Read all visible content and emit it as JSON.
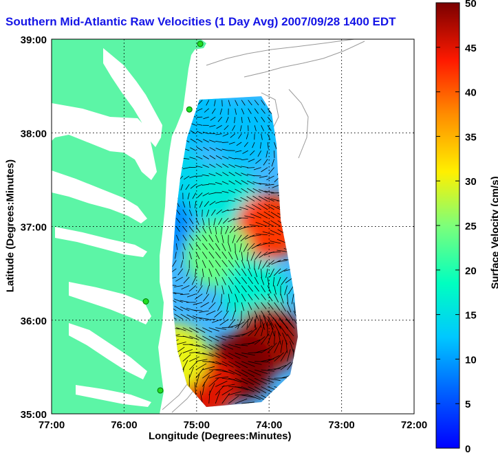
{
  "chart_data": {
    "type": "heatmap",
    "title": "Southern Mid-Atlantic Raw Velocities (1 Day Avg) 2007/09/28 1400 EDT",
    "xlabel": "Longitude (Degrees:Minutes)",
    "ylabel": "Latitude (Degrees:Minutes)",
    "colorbar_label": "Surface Velocity (cm/s)",
    "x_ticks": [
      "77:00",
      "76:00",
      "75:00",
      "74:00",
      "73:00",
      "72:00"
    ],
    "y_ticks": [
      "39:00",
      "38:00",
      "37:00",
      "36:00",
      "35:00"
    ],
    "colorbar_ticks": [
      "0",
      "5",
      "10",
      "15",
      "20",
      "25",
      "30",
      "35",
      "40",
      "45",
      "50"
    ],
    "xlim": [
      -77,
      -72
    ],
    "ylim": [
      35,
      39
    ],
    "clim": [
      0,
      50
    ],
    "grid": true,
    "colormap": "jet",
    "land_color": "#5cf5a6",
    "velocity_field": [
      {
        "lon": -75.0,
        "lat": 38.2,
        "speed": 12
      },
      {
        "lon": -74.3,
        "lat": 38.0,
        "speed": 12
      },
      {
        "lon": -75.3,
        "lat": 37.5,
        "speed": 14
      },
      {
        "lon": -74.6,
        "lat": 37.3,
        "speed": 16
      },
      {
        "lon": -74.0,
        "lat": 37.0,
        "speed": 42
      },
      {
        "lon": -75.5,
        "lat": 37.0,
        "speed": 9
      },
      {
        "lon": -74.7,
        "lat": 36.7,
        "speed": 24
      },
      {
        "lon": -74.2,
        "lat": 36.3,
        "speed": 17
      },
      {
        "lon": -74.0,
        "lat": 35.8,
        "speed": 48
      },
      {
        "lon": -74.4,
        "lat": 35.5,
        "speed": 50
      },
      {
        "lon": -74.9,
        "lat": 35.3,
        "speed": 45
      },
      {
        "lon": -75.3,
        "lat": 35.6,
        "speed": 30
      }
    ],
    "hf_radar_sites": [
      {
        "lon": -74.95,
        "lat": 38.95
      },
      {
        "lon": -75.1,
        "lat": 38.25
      },
      {
        "lon": -75.7,
        "lat": 36.2
      },
      {
        "lon": -75.5,
        "lat": 35.25
      }
    ]
  }
}
